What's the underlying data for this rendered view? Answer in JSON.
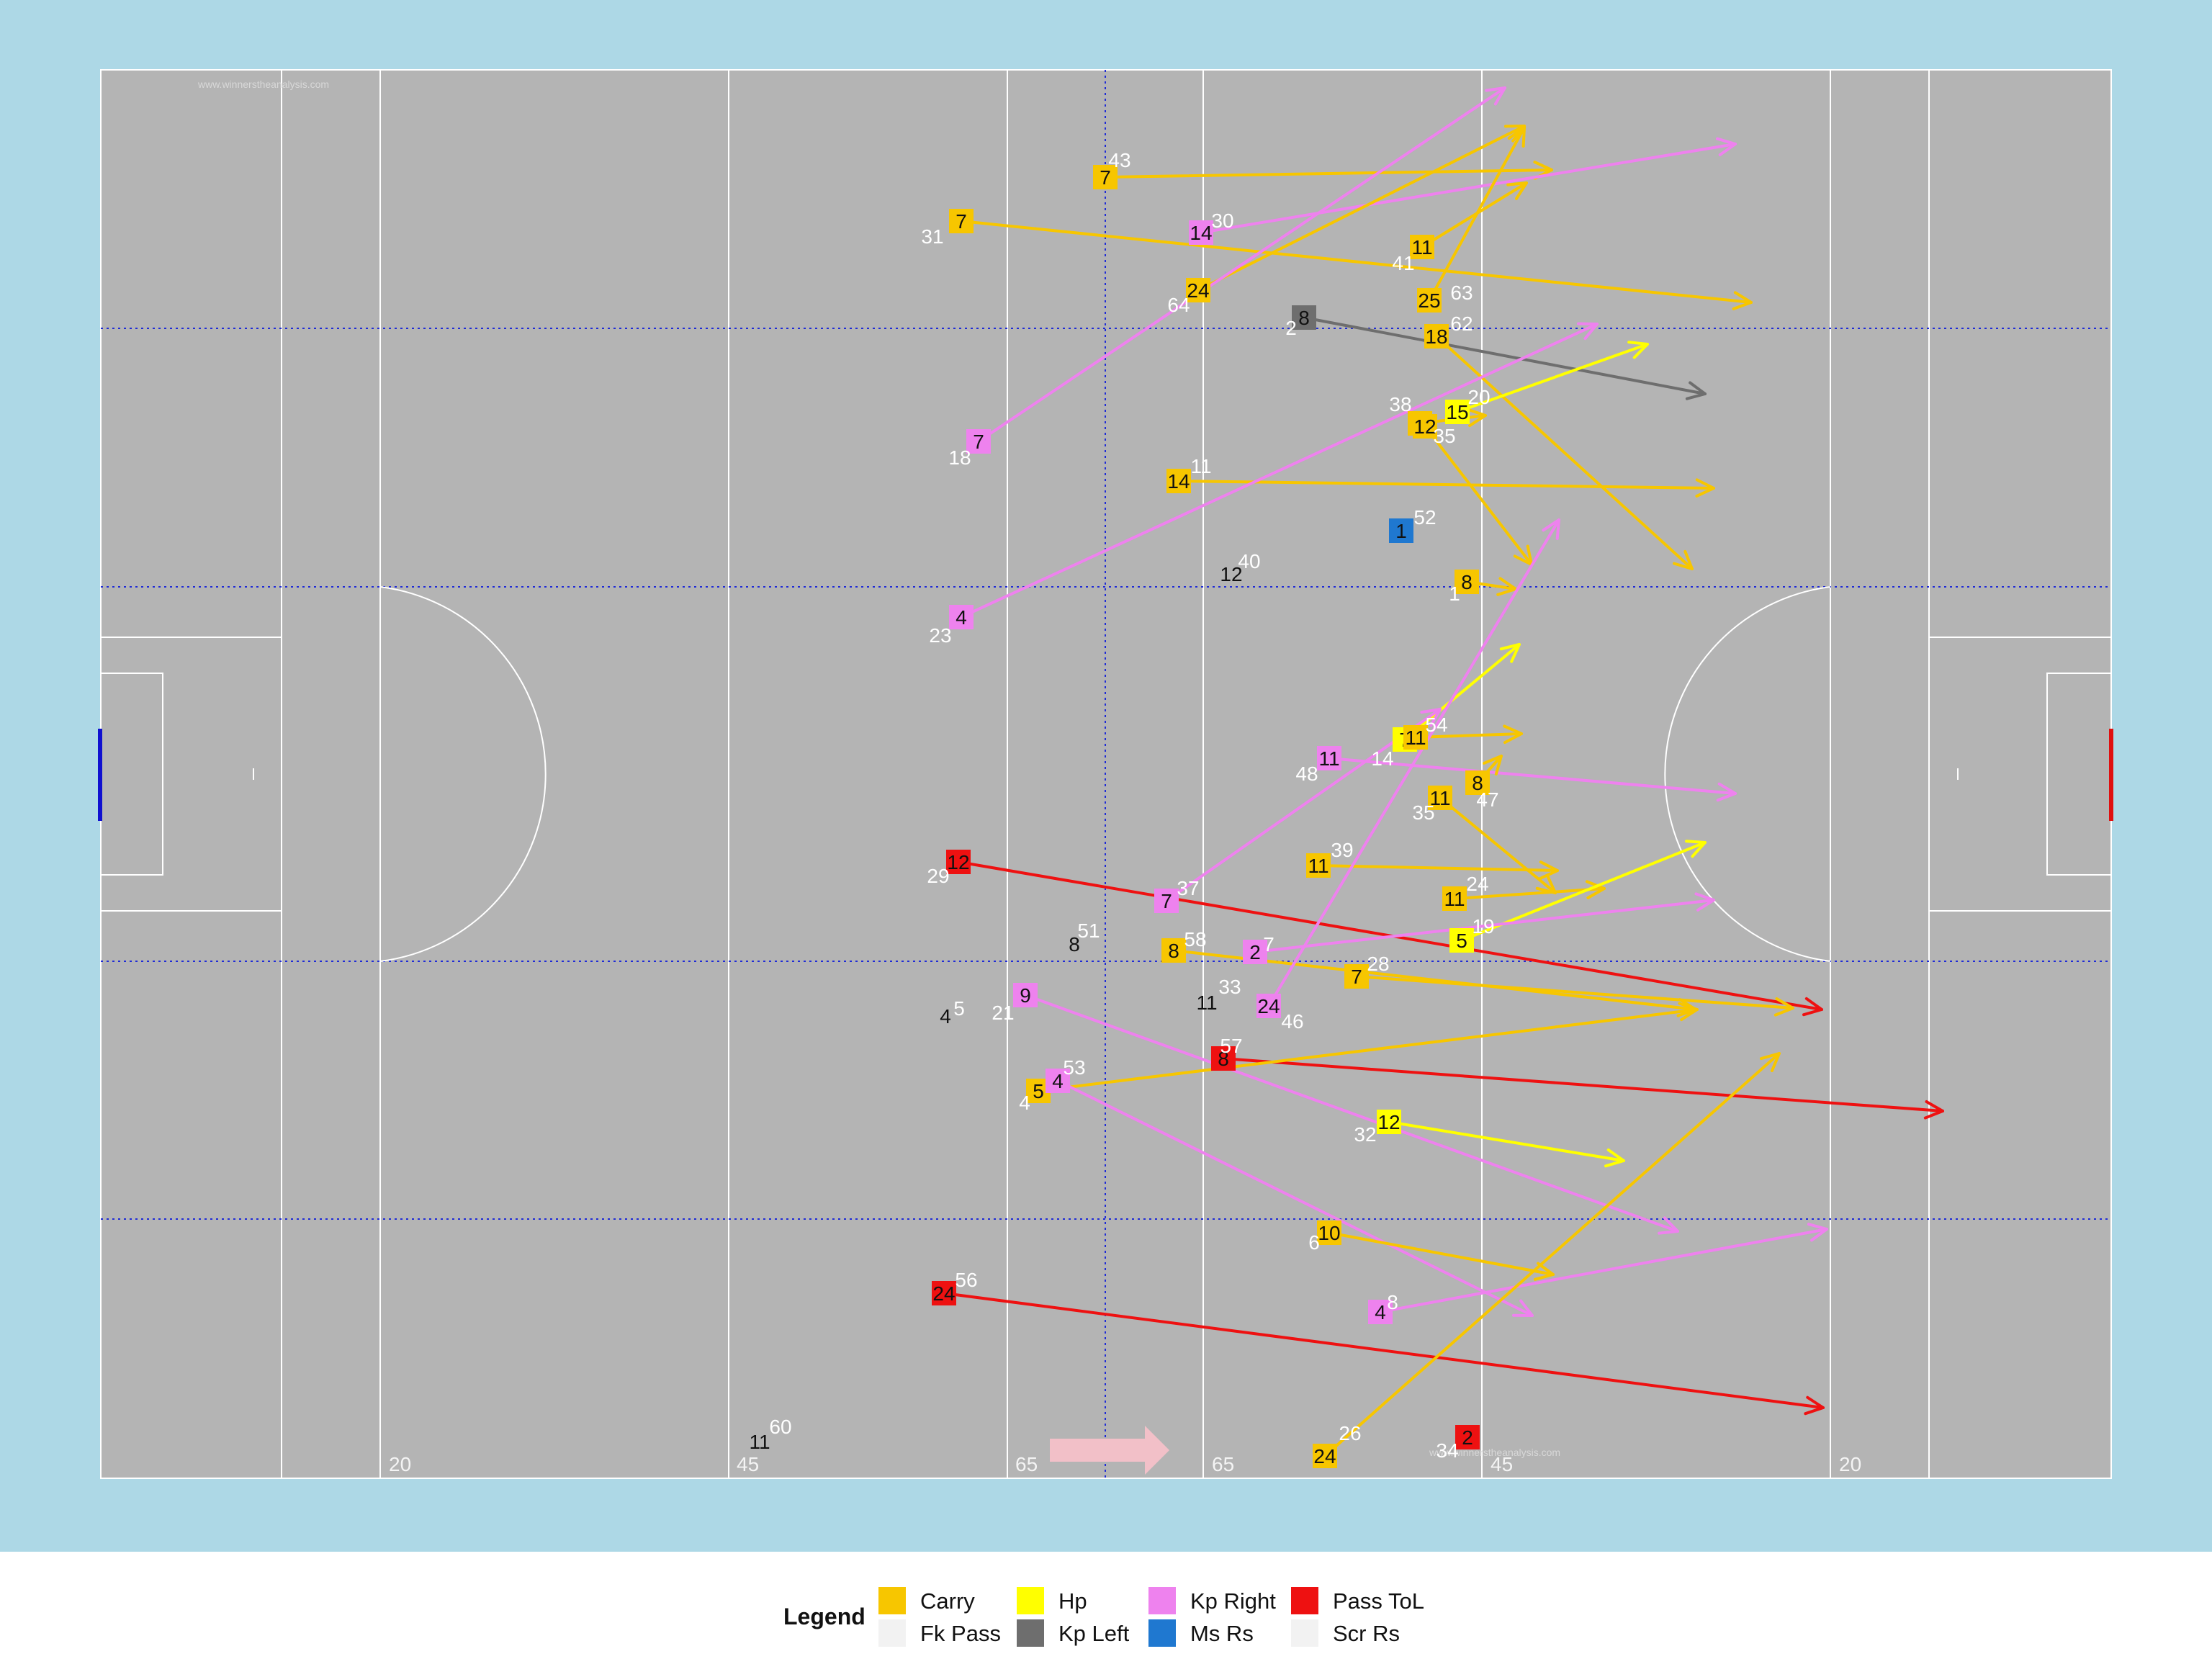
{
  "colors": {
    "panel_bg": "#add8e6",
    "pitch": "#b4b4b4",
    "line": "#ffffff",
    "divider": "#1f2bd6",
    "home_goal": "#1010d0",
    "away_goal": "#e01010",
    "carry": "#f7c600",
    "hp": "#ffff00",
    "kp_right": "#ee82ee",
    "kp_left": "#6e6e6e",
    "pass_tol": "#ee1111",
    "ms_rs": "#1f78d0",
    "fk_pass": "#f2f2f2",
    "scr_rs": "#f2f2f2",
    "direction_arrow": "#f2c0c8"
  },
  "watermarks": {
    "top": "www.winnerstheanalysis.com",
    "bottom": "www.winnerstheanalysis.com"
  },
  "pitch_marks": [
    "20",
    "45",
    "65",
    "65",
    "45",
    "20"
  ],
  "legend": {
    "title": "Legend",
    "items": [
      {
        "label": "Carry",
        "color": "#f7c600"
      },
      {
        "label": "Fk Pass",
        "color": "#f2f2f2"
      },
      {
        "label": "Hp",
        "color": "#ffff00"
      },
      {
        "label": "Kp Left",
        "color": "#6e6e6e"
      },
      {
        "label": "Kp Right",
        "color": "#ee82ee"
      },
      {
        "label": "Ms Rs",
        "color": "#1f78d0"
      },
      {
        "label": "Pass ToL",
        "color": "#ee1111"
      },
      {
        "label": "Scr Rs",
        "color": "#f2f2f2"
      }
    ]
  },
  "events": [
    {
      "type": "Carry",
      "player": "7",
      "minute": "43",
      "arrow_end": [
        55,
        11
      ]
    },
    {
      "type": "Carry",
      "player": "7",
      "minute": "31",
      "arrow_end": [
        78,
        25
      ]
    },
    {
      "type": "Kp Right",
      "player": "14",
      "minute": "30",
      "arrow_end": [
        69,
        8
      ]
    },
    {
      "type": "Carry",
      "player": "24",
      "minute": "64",
      "arrow_end": [
        53,
        13
      ]
    },
    {
      "type": "Carry",
      "player": "11",
      "minute": "41",
      "arrow_end": [
        51,
        9
      ]
    },
    {
      "type": "Carry",
      "player": "25",
      "minute": "63",
      "arrow_end": [
        53,
        13
      ]
    },
    {
      "type": "Kp Left",
      "player": "8",
      "minute": "2",
      "arrow_end": [
        78,
        33
      ]
    },
    {
      "type": "Carry",
      "player": "18",
      "minute": "62",
      "arrow_end": [
        68,
        54
      ]
    },
    {
      "type": "Kp Right",
      "player": "7",
      "minute": "18",
      "arrow_end": [
        67,
        5
      ]
    },
    {
      "type": "Hp",
      "player": "15",
      "minute": "20",
      "arrow_end": [
        62,
        23
      ]
    },
    {
      "type": "Carry",
      "player": "9",
      "minute": "38",
      "arrow_end": [
        56,
        36
      ]
    },
    {
      "type": "Carry",
      "player": "12",
      "minute": "35",
      "arrow_end": [
        57,
        52
      ]
    },
    {
      "type": "Carry",
      "player": "14",
      "minute": "11",
      "arrow_end": [
        74,
        44
      ]
    },
    {
      "type": "Ms Rs",
      "player": "1",
      "minute": "52"
    },
    {
      "type": "Scr Rs",
      "player": "12",
      "minute": "40"
    },
    {
      "type": "Carry",
      "player": "8",
      "minute": "1",
      "arrow_end": [
        53,
        56
      ]
    },
    {
      "type": "Kp Right",
      "player": "4",
      "minute": "23",
      "arrow_end": [
        59,
        30
      ]
    },
    {
      "type": "Hp",
      "player": "7",
      "minute": "14",
      "arrow_end": [
        55,
        64
      ]
    },
    {
      "type": "Carry",
      "player": "11",
      "minute": "54",
      "arrow_end": [
        53,
        62
      ]
    },
    {
      "type": "Kp Right",
      "player": "11",
      "minute": "48",
      "arrow_end": [
        71,
        70
      ]
    },
    {
      "type": "Carry",
      "player": "8",
      "minute": "47",
      "arrow_end": [
        54,
        77
      ]
    },
    {
      "type": "Carry",
      "player": "11",
      "minute": "35",
      "arrow_end": [
        55,
        97
      ]
    },
    {
      "type": "Pass ToL",
      "player": "12",
      "minute": "29",
      "arrow_end": [
        86,
        91
      ]
    },
    {
      "type": "Kp Right",
      "player": "7",
      "minute": "37",
      "arrow_end": [
        72,
        55
      ]
    },
    {
      "type": "Carry",
      "player": "11",
      "minute": "39",
      "arrow_end": [
        65,
        86
      ]
    },
    {
      "type": "Carry",
      "player": "11",
      "minute": "24",
      "arrow_end": [
        64,
        110
      ]
    },
    {
      "type": "Hp",
      "player": "5",
      "minute": "19",
      "arrow_end": [
        80,
        73
      ]
    },
    {
      "type": "Carry",
      "player": "8",
      "minute": "58",
      "arrow_end": [
        68,
        87
      ]
    },
    {
      "type": "Kp Right",
      "player": "2",
      "minute": "7",
      "arrow_end": [
        74,
        101
      ]
    },
    {
      "type": "Carry",
      "player": "7",
      "minute": "28",
      "arrow_end": [
        77,
        113
      ]
    },
    {
      "type": "Scr Rs",
      "player": "8",
      "minute": "51"
    },
    {
      "type": "Scr Rs",
      "player": "11",
      "minute": "33"
    },
    {
      "type": "Kp Right",
      "player": "24",
      "minute": "46",
      "arrow_end": [
        54,
        71
      ]
    },
    {
      "type": "Kp Right",
      "player": "9",
      "minute": "21",
      "arrow_end": [
        62,
        138
      ]
    },
    {
      "type": "Scr Rs",
      "player": "4",
      "minute": "5"
    },
    {
      "type": "Pass ToL",
      "player": "8",
      "minute": "57",
      "arrow_end": [
        81,
        119
      ]
    },
    {
      "type": "Carry",
      "player": "5",
      "minute": "4",
      "arrow_end": [
        66,
        103
      ]
    },
    {
      "type": "Kp Right",
      "player": "4",
      "minute": "53",
      "arrow_end": [
        55,
        153
      ]
    },
    {
      "type": "Hp",
      "player": "12",
      "minute": "32",
      "arrow_end": [
        75,
        116
      ]
    },
    {
      "type": "Carry",
      "player": "10",
      "minute": "6",
      "arrow_end": [
        61,
        133
      ]
    },
    {
      "type": "Kp Right",
      "player": "4",
      "minute": "8",
      "arrow_end": [
        77,
        126
      ]
    },
    {
      "type": "Pass ToL",
      "player": "24",
      "minute": "56",
      "arrow_end": [
        86,
        144
      ]
    },
    {
      "type": "Scr Rs",
      "player": "11",
      "minute": "60"
    },
    {
      "type": "Carry",
      "player": "24",
      "minute": "26",
      "arrow_end": [
        84,
        101
      ]
    },
    {
      "type": "Pass ToL",
      "player": "2",
      "minute": "34"
    }
  ]
}
